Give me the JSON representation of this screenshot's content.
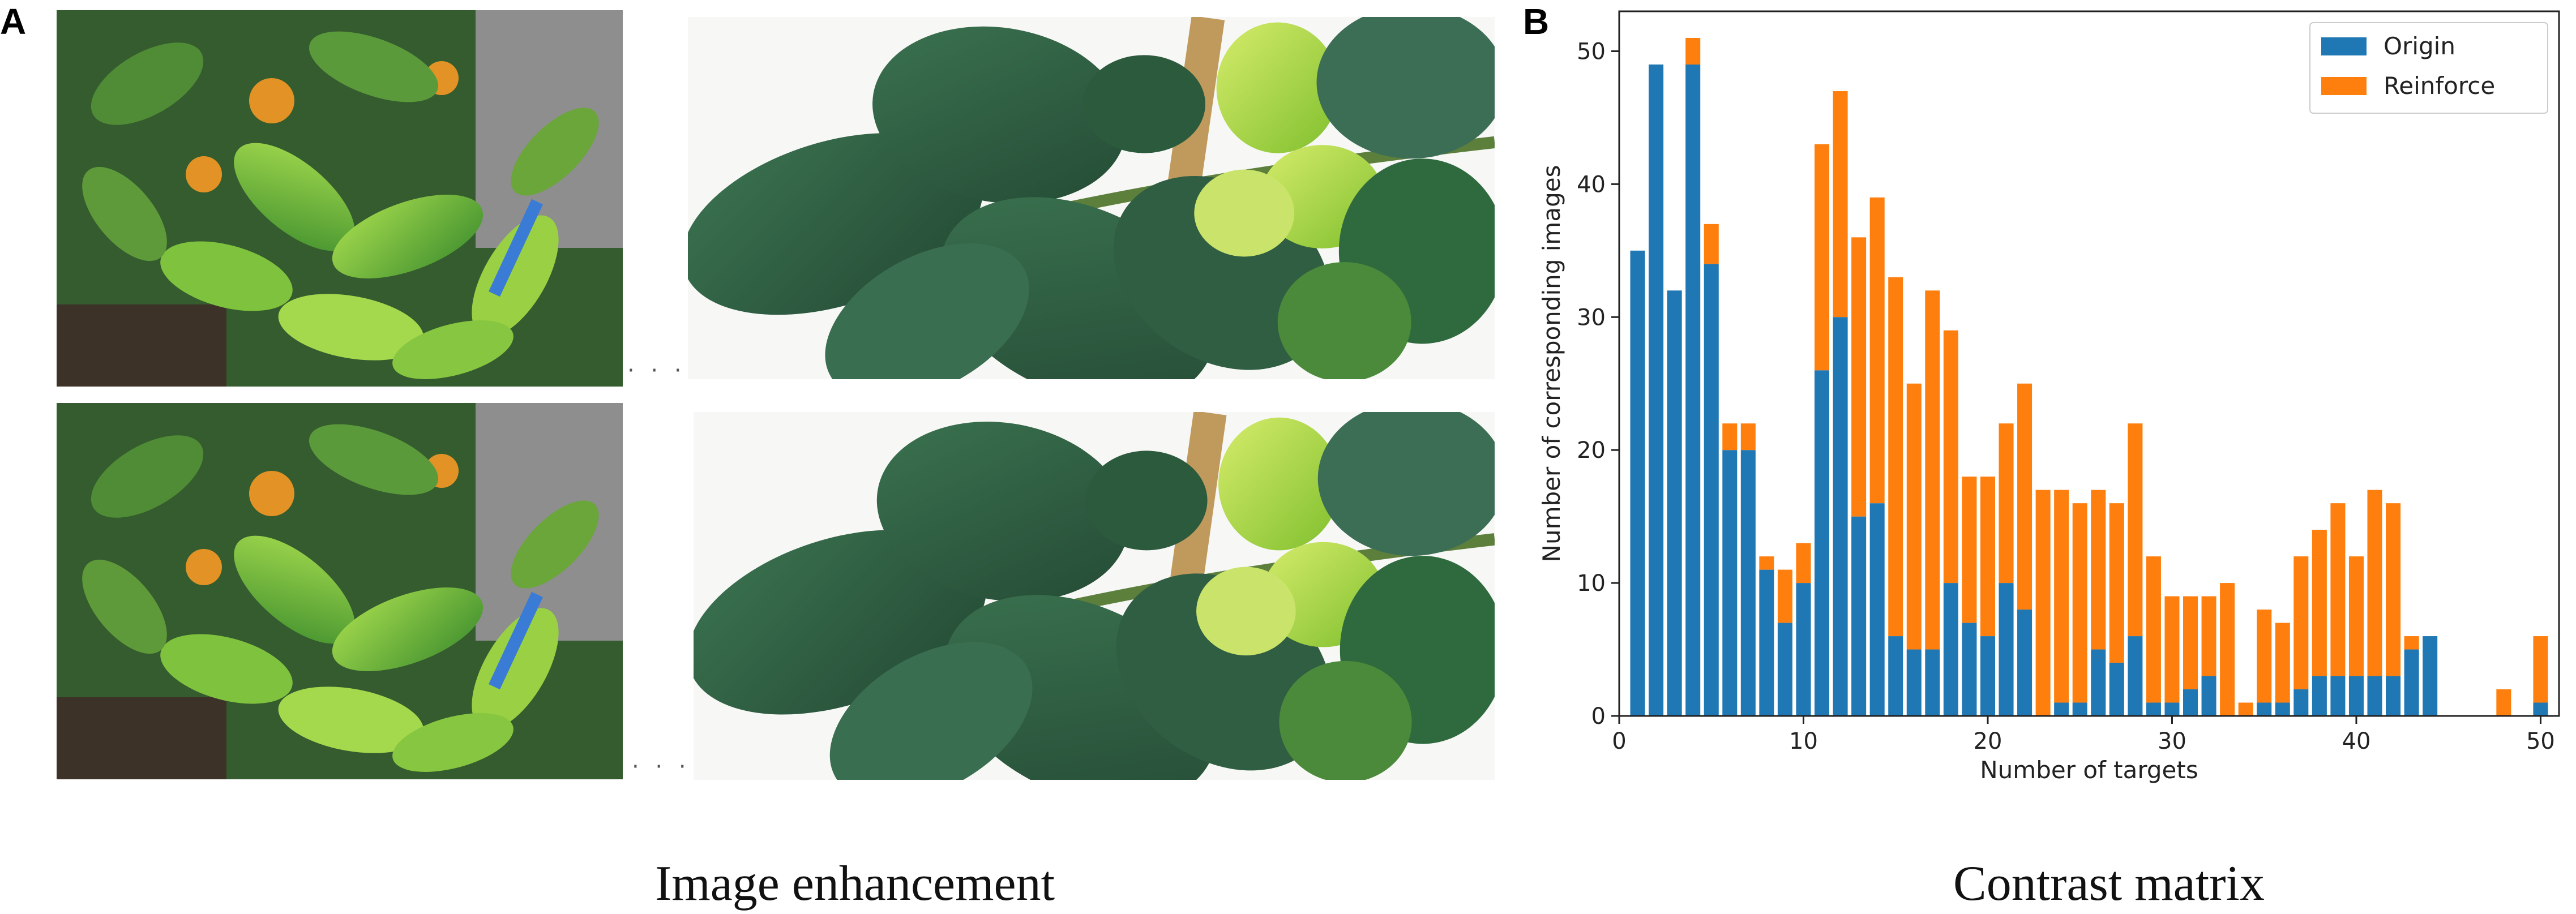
{
  "panels": {
    "a_letter": "A",
    "b_letter": "B"
  },
  "captions": {
    "left": "Image enhancement",
    "right": "Contrast matrix"
  },
  "photos": {
    "ellipsis": "· · ·",
    "colors": {
      "leaf_light": "#8ccf3c",
      "leaf_dark": "#2f5e3e",
      "soil": "#3c3228",
      "wall": "#8a8a8a",
      "fruit": "#e39325",
      "stem": "#b8935a"
    }
  },
  "colors": {
    "origin": "#1f77b4",
    "reinforce": "#ff7f0e",
    "axis": "#222222"
  },
  "chart_data": {
    "type": "bar",
    "stacked": true,
    "title": "",
    "xlabel": "Number of targets",
    "ylabel": "Number of corresponding images",
    "xlim": [
      0,
      51
    ],
    "ylim": [
      0,
      53
    ],
    "xticks": [
      0,
      10,
      20,
      30,
      40,
      50
    ],
    "yticks": [
      0,
      10,
      20,
      30,
      40,
      50
    ],
    "grid": false,
    "legend_position": "top-right",
    "x": [
      1,
      2,
      3,
      4,
      5,
      6,
      7,
      8,
      9,
      10,
      11,
      12,
      13,
      14,
      15,
      16,
      17,
      18,
      19,
      20,
      21,
      22,
      23,
      24,
      25,
      26,
      27,
      28,
      29,
      30,
      31,
      32,
      33,
      34,
      35,
      36,
      37,
      38,
      39,
      40,
      41,
      42,
      43,
      44,
      45,
      46,
      47,
      48,
      49,
      50
    ],
    "series": [
      {
        "name": "Origin",
        "values": [
          35,
          49,
          32,
          49,
          34,
          20,
          20,
          11,
          7,
          10,
          26,
          30,
          15,
          16,
          6,
          5,
          5,
          10,
          7,
          6,
          10,
          8,
          0,
          1,
          1,
          5,
          4,
          6,
          1,
          1,
          2,
          3,
          0,
          0,
          1,
          1,
          2,
          3,
          3,
          3,
          3,
          3,
          5,
          6,
          0,
          0,
          0,
          0,
          0,
          1
        ]
      },
      {
        "name": "Reinforce",
        "values": [
          0,
          0,
          0,
          2,
          3,
          2,
          2,
          1,
          4,
          3,
          17,
          17,
          21,
          23,
          27,
          20,
          27,
          19,
          11,
          12,
          12,
          17,
          17,
          16,
          15,
          12,
          12,
          16,
          11,
          8,
          7,
          6,
          10,
          1,
          7,
          6,
          10,
          11,
          13,
          9,
          14,
          13,
          1,
          0,
          0,
          0,
          0,
          2,
          0,
          5
        ]
      }
    ]
  }
}
